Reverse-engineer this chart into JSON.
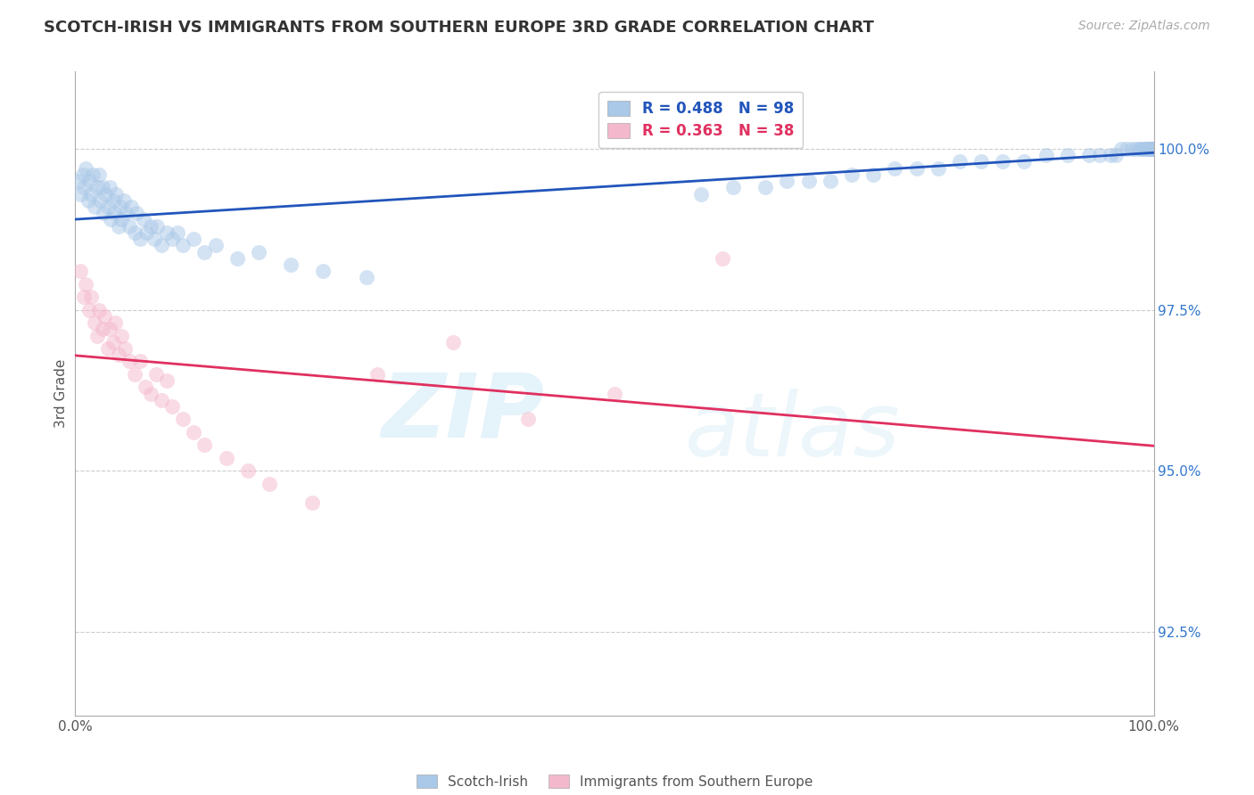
{
  "title": "SCOTCH-IRISH VS IMMIGRANTS FROM SOUTHERN EUROPE 3RD GRADE CORRELATION CHART",
  "source": "Source: ZipAtlas.com",
  "ylabel": "3rd Grade",
  "watermark_zip": "ZIP",
  "watermark_atlas": "atlas",
  "legend_blue_label": "Scotch-Irish",
  "legend_pink_label": "Immigrants from Southern Europe",
  "R_blue": 0.488,
  "N_blue": 98,
  "R_pink": 0.363,
  "N_pink": 38,
  "blue_scatter_color": "#aac8e8",
  "pink_scatter_color": "#f4b8cc",
  "blue_line_color": "#2255bb",
  "pink_line_color": "#e03060",
  "blue_legend_color": "#aac8e8",
  "pink_legend_color": "#f4b8cc",
  "xmin": 0.0,
  "xmax": 1.0,
  "ymin": 91.2,
  "ymax": 101.2,
  "yticks": [
    92.5,
    95.0,
    97.5,
    100.0
  ],
  "blue_x": [
    0.003,
    0.005,
    0.007,
    0.008,
    0.01,
    0.012,
    0.013,
    0.015,
    0.016,
    0.018,
    0.02,
    0.022,
    0.023,
    0.025,
    0.026,
    0.028,
    0.03,
    0.032,
    0.033,
    0.035,
    0.036,
    0.038,
    0.04,
    0.042,
    0.043,
    0.045,
    0.047,
    0.05,
    0.052,
    0.055,
    0.057,
    0.06,
    0.063,
    0.066,
    0.07,
    0.073,
    0.076,
    0.08,
    0.085,
    0.09,
    0.095,
    0.1,
    0.11,
    0.12,
    0.13,
    0.15,
    0.17,
    0.2,
    0.23,
    0.27,
    0.58,
    0.61,
    0.64,
    0.66,
    0.68,
    0.7,
    0.72,
    0.74,
    0.76,
    0.78,
    0.8,
    0.82,
    0.84,
    0.86,
    0.88,
    0.9,
    0.92,
    0.94,
    0.95,
    0.96,
    0.965,
    0.97,
    0.975,
    0.98,
    0.983,
    0.986,
    0.988,
    0.99,
    0.992,
    0.994,
    0.995,
    0.996,
    0.997,
    0.997,
    0.998,
    0.998,
    0.999,
    0.999,
    0.999,
    1.0,
    1.0,
    1.0,
    1.0,
    1.0,
    1.0,
    1.0,
    1.0,
    1.0
  ],
  "blue_y": [
    99.5,
    99.3,
    99.6,
    99.4,
    99.7,
    99.2,
    99.5,
    99.3,
    99.6,
    99.1,
    99.4,
    99.6,
    99.2,
    99.4,
    99.0,
    99.3,
    99.1,
    99.4,
    98.9,
    99.2,
    99.0,
    99.3,
    98.8,
    99.1,
    98.9,
    99.2,
    99.0,
    98.8,
    99.1,
    98.7,
    99.0,
    98.6,
    98.9,
    98.7,
    98.8,
    98.6,
    98.8,
    98.5,
    98.7,
    98.6,
    98.7,
    98.5,
    98.6,
    98.4,
    98.5,
    98.3,
    98.4,
    98.2,
    98.1,
    98.0,
    99.3,
    99.4,
    99.4,
    99.5,
    99.5,
    99.5,
    99.6,
    99.6,
    99.7,
    99.7,
    99.7,
    99.8,
    99.8,
    99.8,
    99.8,
    99.9,
    99.9,
    99.9,
    99.9,
    99.9,
    99.9,
    100.0,
    100.0,
    100.0,
    100.0,
    100.0,
    100.0,
    100.0,
    100.0,
    100.0,
    100.0,
    100.0,
    100.0,
    100.0,
    100.0,
    100.0,
    100.0,
    100.0,
    100.0,
    100.0,
    100.0,
    100.0,
    100.0,
    100.0,
    100.0,
    100.0,
    100.0,
    100.0
  ],
  "pink_x": [
    0.005,
    0.008,
    0.01,
    0.013,
    0.015,
    0.018,
    0.02,
    0.022,
    0.025,
    0.027,
    0.03,
    0.032,
    0.035,
    0.037,
    0.04,
    0.043,
    0.046,
    0.05,
    0.055,
    0.06,
    0.065,
    0.07,
    0.075,
    0.08,
    0.085,
    0.09,
    0.1,
    0.11,
    0.12,
    0.14,
    0.16,
    0.18,
    0.22,
    0.28,
    0.35,
    0.42,
    0.5,
    0.6
  ],
  "pink_y": [
    98.1,
    97.7,
    97.9,
    97.5,
    97.7,
    97.3,
    97.1,
    97.5,
    97.2,
    97.4,
    96.9,
    97.2,
    97.0,
    97.3,
    96.8,
    97.1,
    96.9,
    96.7,
    96.5,
    96.7,
    96.3,
    96.2,
    96.5,
    96.1,
    96.4,
    96.0,
    95.8,
    95.6,
    95.4,
    95.2,
    95.0,
    94.8,
    94.5,
    96.5,
    97.0,
    95.8,
    96.2,
    98.3
  ]
}
